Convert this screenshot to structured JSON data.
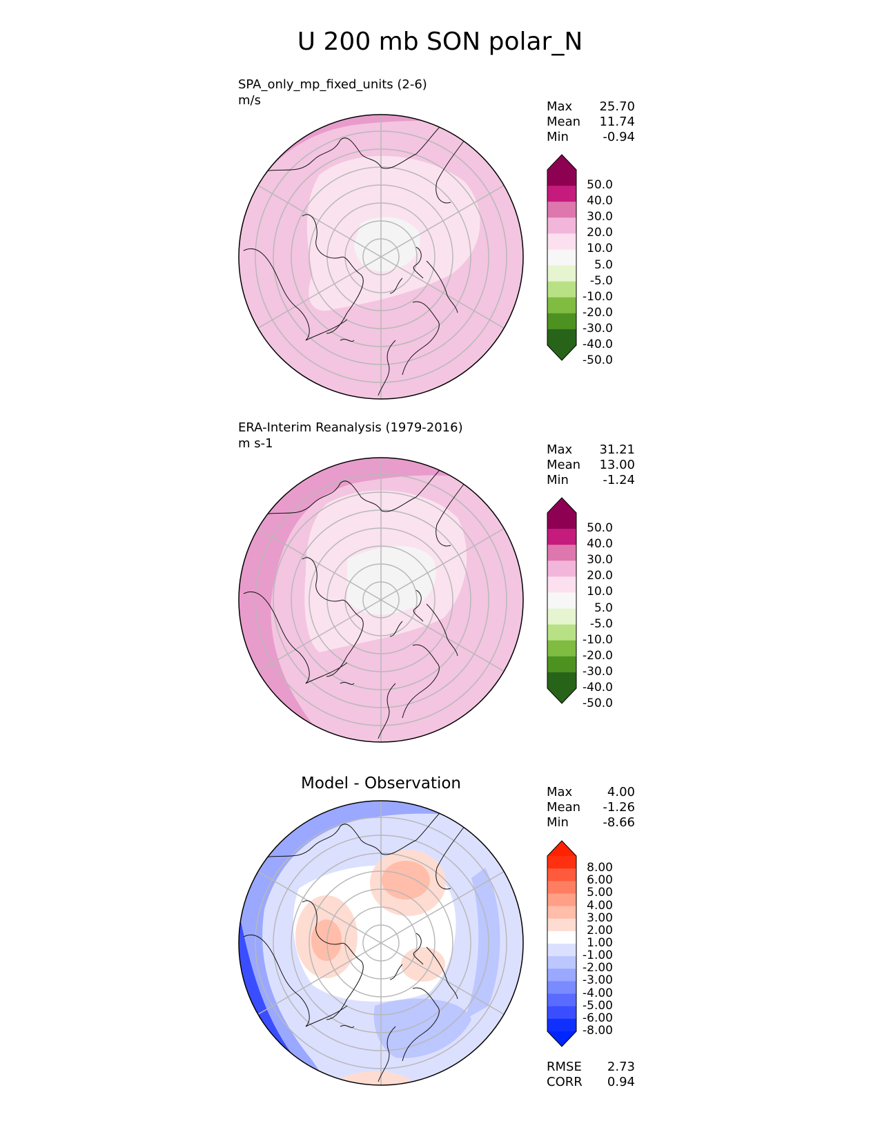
{
  "title": "U 200 mb SON polar_N",
  "panels": [
    {
      "name": "SPA_only_mp_fixed_units (2-6)",
      "units": "m/s",
      "stats": {
        "max_label": "Max",
        "max": "25.70",
        "mean_label": "Mean",
        "mean": "11.74",
        "min_label": "Min",
        "min": "-0.94"
      }
    },
    {
      "name": "ERA-Interim Reanalysis (1979-2016)",
      "units": "m s-1",
      "stats": {
        "max_label": "Max",
        "max": "31.21",
        "mean_label": "Mean",
        "mean": "13.00",
        "min_label": "Min",
        "min": "-1.24"
      }
    },
    {
      "name": "Model - Observation",
      "stats": {
        "max_label": "Max",
        "max": "4.00",
        "mean_label": "Mean",
        "mean": "-1.26",
        "min_label": "Min",
        "min": "-8.66"
      },
      "rmse_label": "RMSE",
      "rmse": "2.73",
      "corr_label": "CORR",
      "corr": "0.94"
    }
  ],
  "chart_data": {
    "type": "heatmap",
    "projection": "north polar stereographic",
    "variable": "U 200 mb",
    "season": "SON",
    "colorbar_main": {
      "labels": [
        "50.0",
        "40.0",
        "30.0",
        "20.0",
        "10.0",
        "5.0",
        "-5.0",
        "-10.0",
        "-20.0",
        "-30.0",
        "-40.0",
        "-50.0"
      ],
      "colors": [
        "#8e0152",
        "#c51b7d",
        "#de77ae",
        "#f1b6da",
        "#fde0ef",
        "#f7f7f7",
        "#e6f5d0",
        "#b8e186",
        "#7fbc41",
        "#4d9221",
        "#276419"
      ],
      "extend_high": "#8e0152",
      "extend_low": "#276419"
    },
    "colorbar_diff": {
      "labels": [
        "8.00",
        "6.00",
        "5.00",
        "4.00",
        "3.00",
        "2.00",
        "1.00",
        "-1.00",
        "-2.00",
        "-3.00",
        "-4.00",
        "-5.00",
        "-6.00",
        "-8.00"
      ],
      "colors": [
        "#ff3010",
        "#ff5a3c",
        "#ff7e62",
        "#ff9f86",
        "#ffbdaa",
        "#ffdcd2",
        "#ffffff",
        "#dce0ff",
        "#bcc6ff",
        "#9aa8ff",
        "#7a8aff",
        "#5a6cff",
        "#3a4eff",
        "#1030ff"
      ],
      "extend_high": "#ff2200",
      "extend_low": "#0026ff"
    }
  }
}
